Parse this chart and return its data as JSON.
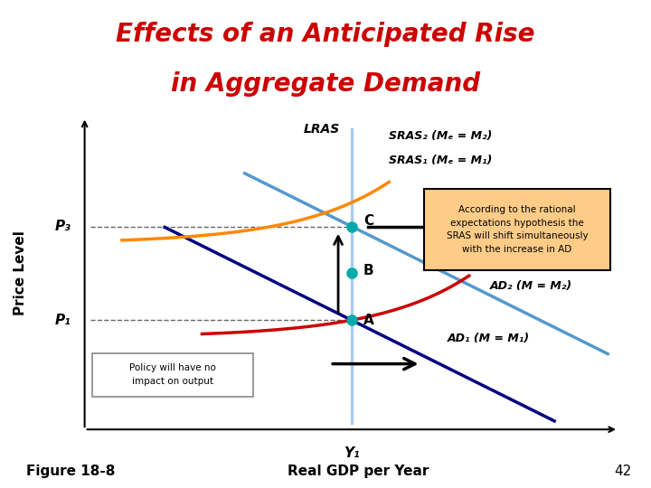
{
  "title_line1": "Effects of an Anticipated Rise",
  "title_line2": "in Aggregate Demand",
  "title_color": "#cc0000",
  "title_bg_color": "#8888bb",
  "xlabel": "Real GDP per Year",
  "ylabel": "Price Level",
  "figure_label": "Figure 18-8",
  "figure_number": "42",
  "y1_label": "Y₁",
  "lras_label": "LRAS",
  "sras2_label": "SRAS₂ (Mₑ = M₂)",
  "sras1_label": "SRAS₁ (Mₑ = M₁)",
  "ad2_label": "AD₂ (M = M₂)",
  "ad1_label": "AD₁ (M = M₁)",
  "p1_label": "P₁",
  "p3_label": "P₃",
  "point_a_label": "A",
  "point_b_label": "B",
  "point_c_label": "C",
  "lras_color": "#aaccee",
  "sras1_color": "#cc0000",
  "sras2_color": "#ff8800",
  "ad1_color": "#000080",
  "ad2_color": "#5599cc",
  "point_color": "#00aaaa",
  "annotation_bg": "#ffcc88",
  "annotation_border": "#000000",
  "annotation_text": "According to the rational\nexpectations hypothesis the\nSRAS will shift simultaneously\nwith the increase in AD",
  "policy_box_text": "Policy will have no\nimpact on output",
  "policy_box_bg": "#ffffff",
  "policy_box_border": "#888888"
}
